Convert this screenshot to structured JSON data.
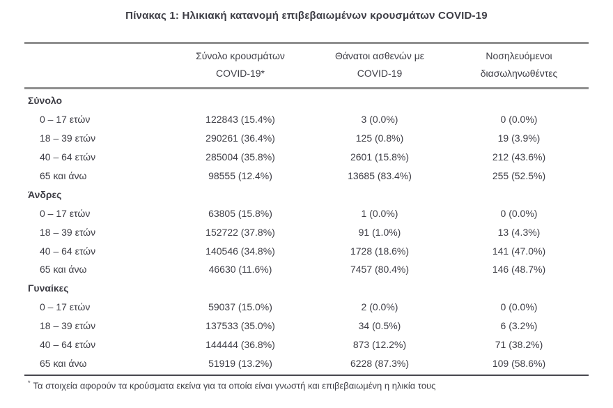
{
  "title": "Πίνακας 1: Ηλικιακή κατανομή επιβεβαιωμένων κρουσμάτων COVID-19",
  "table": {
    "columns": [
      {
        "line1": "Σύνολο κρουσμάτων",
        "line2": "COVID-19*"
      },
      {
        "line1": "Θάνατοι ασθενών με",
        "line2": "COVID-19"
      },
      {
        "line1": "Νοσηλευόμενοι",
        "line2": "διασωληνωθέντες"
      }
    ],
    "sections": [
      {
        "label": "Σύνολο",
        "rows": [
          {
            "age": "0 – 17 ετών",
            "cases": "122843 (15.4%)",
            "deaths": "3 (0.0%)",
            "intubated": "0 (0.0%)"
          },
          {
            "age": "18 – 39 ετών",
            "cases": "290261 (36.4%)",
            "deaths": "125 (0.8%)",
            "intubated": "19 (3.9%)"
          },
          {
            "age": "40 – 64 ετών",
            "cases": "285004 (35.8%)",
            "deaths": "2601 (15.8%)",
            "intubated": "212 (43.6%)"
          },
          {
            "age": "65 και άνω",
            "cases": "98555 (12.4%)",
            "deaths": "13685 (83.4%)",
            "intubated": "255 (52.5%)"
          }
        ]
      },
      {
        "label": "Άνδρες",
        "rows": [
          {
            "age": "0 – 17 ετών",
            "cases": "63805 (15.8%)",
            "deaths": "1 (0.0%)",
            "intubated": "0 (0.0%)"
          },
          {
            "age": "18 – 39 ετών",
            "cases": "152722 (37.8%)",
            "deaths": "91 (1.0%)",
            "intubated": "13 (4.3%)"
          },
          {
            "age": "40 – 64 ετών",
            "cases": "140546 (34.8%)",
            "deaths": "1728 (18.6%)",
            "intubated": "141 (47.0%)"
          },
          {
            "age": "65 και άνω",
            "cases": "46630 (11.6%)",
            "deaths": "7457 (80.4%)",
            "intubated": "146 (48.7%)"
          }
        ]
      },
      {
        "label": "Γυναίκες",
        "rows": [
          {
            "age": "0 – 17 ετών",
            "cases": "59037 (15.0%)",
            "deaths": "2 (0.0%)",
            "intubated": "0 (0.0%)"
          },
          {
            "age": "18 – 39 ετών",
            "cases": "137533 (35.0%)",
            "deaths": "34 (0.5%)",
            "intubated": "6 (3.2%)"
          },
          {
            "age": "40 – 64 ετών",
            "cases": "144444 (36.8%)",
            "deaths": "873 (12.2%)",
            "intubated": "71 (38.2%)"
          },
          {
            "age": "65 και άνω",
            "cases": "51919 (13.2%)",
            "deaths": "6228 (87.3%)",
            "intubated": "109 (58.6%)"
          }
        ]
      }
    ]
  },
  "footnote": {
    "marker": "*",
    "text": "Τα στοιχεία αφορούν τα κρούσματα εκείνα για τα οποία είναι γνωστή και επιβεβαιωμένη η ηλικία τους"
  },
  "colors": {
    "text": "#3e3e46",
    "rule_gray": "#8f8f8f",
    "rule_dark": "#47474f",
    "background": "#ffffff"
  }
}
